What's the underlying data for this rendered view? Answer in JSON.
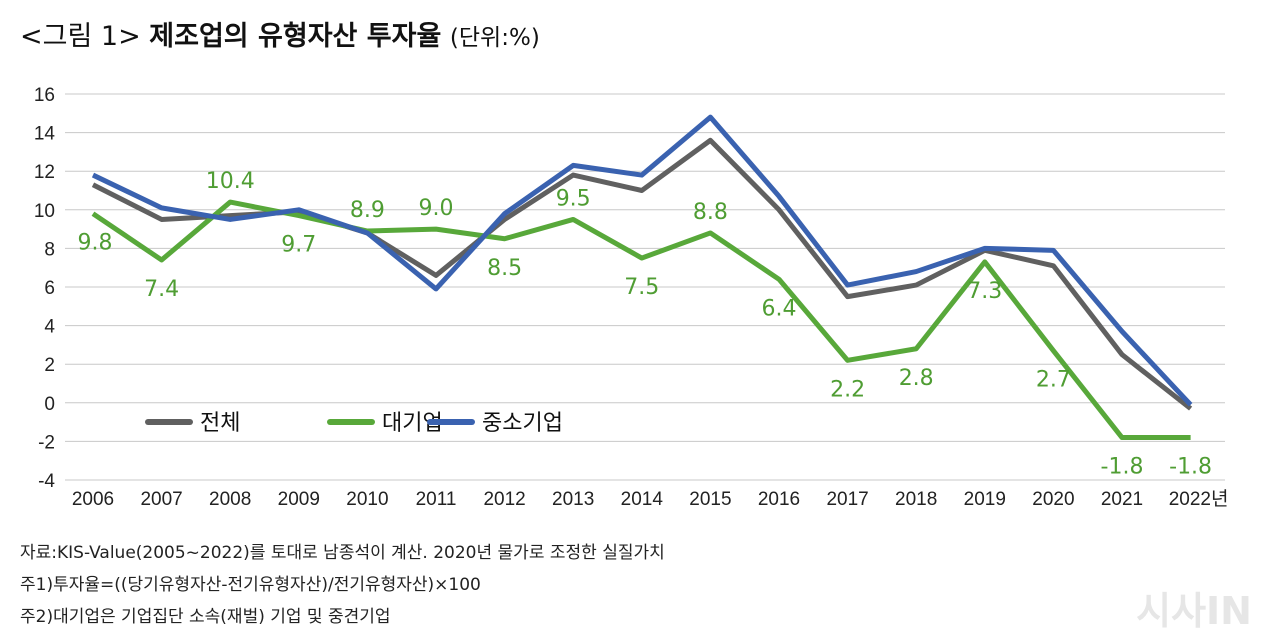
{
  "chart_data": {
    "type": "line",
    "title_prefix": "<그림 1>",
    "title": "제조업의 유형자산 투자율",
    "unit": "(단위:%)",
    "categories": [
      "2006",
      "2007",
      "2008",
      "2009",
      "2010",
      "2011",
      "2012",
      "2013",
      "2014",
      "2015",
      "2016",
      "2017",
      "2018",
      "2019",
      "2020",
      "2021",
      "2022년"
    ],
    "ylim": [
      -4,
      16
    ],
    "yticks": [
      "16",
      "14",
      "12",
      "10",
      "8",
      "6",
      "4",
      "2",
      "0",
      "-2",
      "-4"
    ],
    "grid": true,
    "legend_placement": "bottom-left",
    "series": [
      {
        "name": "전체",
        "color": "#606060",
        "values": [
          11.3,
          9.5,
          9.7,
          9.9,
          8.8,
          6.6,
          9.5,
          11.8,
          11.0,
          13.6,
          10.0,
          5.5,
          6.1,
          7.9,
          7.1,
          2.5,
          -0.3
        ]
      },
      {
        "name": "대기업",
        "color": "#58a83a",
        "values": [
          9.8,
          7.4,
          10.4,
          9.7,
          8.9,
          9.0,
          8.5,
          9.5,
          7.5,
          8.8,
          6.4,
          2.2,
          2.8,
          7.3,
          2.7,
          -1.8,
          -1.8
        ],
        "data_labels": [
          "9.8",
          "7.4",
          "10.4",
          "9.7",
          "8.9",
          "9.0",
          "8.5",
          "9.5",
          "7.5",
          "8.8",
          "6.4",
          "2.2",
          "2.8",
          "7.3",
          "2.7",
          "-1.8",
          "-1.8"
        ]
      },
      {
        "name": "중소기업",
        "color": "#3a62b0",
        "values": [
          11.8,
          10.1,
          9.5,
          10.0,
          8.8,
          5.9,
          9.8,
          12.3,
          11.8,
          14.8,
          10.7,
          6.1,
          6.8,
          8.0,
          7.9,
          3.7,
          -0.1
        ]
      }
    ]
  },
  "notes": [
    "자료:KIS-Value(2005~2022)를 토대로 남종석이 계산. 2020년 물가로 조정한 실질가치",
    "주1)투자율=((당기유형자산-전기유형자산)/전기유형자산)×100",
    "주2)대기업은 기업집단 소속(재벌) 기업 및 중견기업"
  ],
  "watermark": "시사IN"
}
